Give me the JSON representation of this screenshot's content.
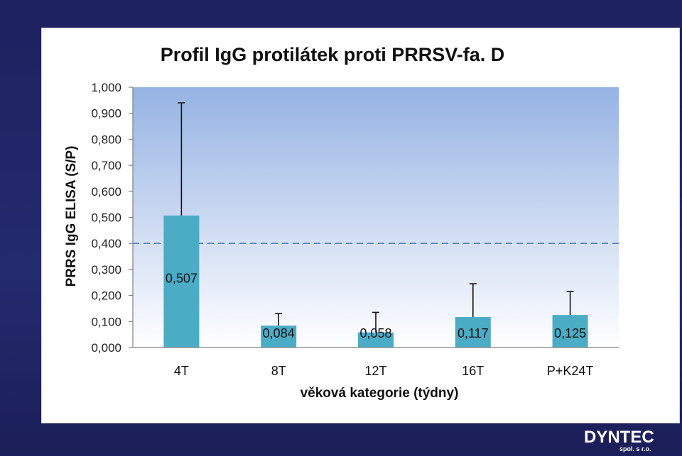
{
  "chart_data": {
    "type": "bar",
    "title": "Profil IgG protilátek proti PRRSV-fa. D",
    "xlabel": "věková kategorie (týdny)",
    "ylabel": "PRRS IgG ELISA (S/P)",
    "categories": [
      "4T",
      "8T",
      "12T",
      "16T",
      "P+K24T"
    ],
    "series": [
      {
        "values": [
          0.507,
          0.084,
          0.058,
          0.117,
          0.125
        ],
        "data_labels": [
          "0,507",
          "0,084",
          "0,058",
          "0,117",
          "0,125"
        ],
        "error_upper": [
          0.94,
          0.13,
          0.135,
          0.245,
          0.215
        ],
        "color": "#4bacc6"
      }
    ],
    "ylim": [
      0,
      1
    ],
    "yticks": [
      0,
      0.1,
      0.2,
      0.3,
      0.4,
      0.5,
      0.6,
      0.7,
      0.8,
      0.9,
      1.0
    ],
    "ytick_labels": [
      "0,000",
      "0,100",
      "0,200",
      "0,300",
      "0,400",
      "0,500",
      "0,600",
      "0,700",
      "0,800",
      "0,900",
      "1,000"
    ],
    "reference_line": {
      "value": 0.4,
      "style": "dashed",
      "color": "#4f81bd"
    },
    "plot_background": {
      "top": "#95b3e3",
      "bottom": "#ffffff"
    },
    "grid": false,
    "legend": "none"
  },
  "logo": {
    "text": "DYNTEC",
    "subtext": "spol. s r.o."
  }
}
